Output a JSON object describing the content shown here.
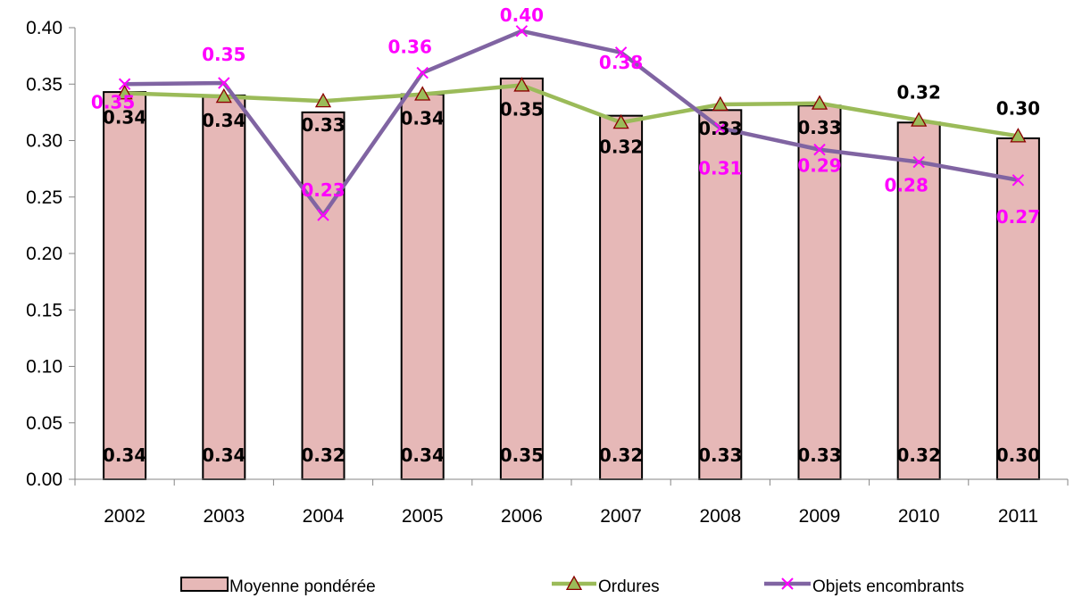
{
  "chart_data": {
    "type": "bar",
    "categories": [
      "2002",
      "2003",
      "2004",
      "2005",
      "2006",
      "2007",
      "2008",
      "2009",
      "2010",
      "2011"
    ],
    "ylim": [
      0,
      0.4
    ],
    "y_ticks": [
      "0.00",
      "0.05",
      "0.10",
      "0.15",
      "0.20",
      "0.25",
      "0.30",
      "0.35",
      "0.40"
    ],
    "grid": false,
    "legend_position": "bottom",
    "series": [
      {
        "name": "Moyenne pondérée",
        "type": "bar",
        "color": "#e6b8b7",
        "values": [
          0.343,
          0.34,
          0.325,
          0.341,
          0.355,
          0.322,
          0.327,
          0.331,
          0.316,
          0.302
        ],
        "labels": [
          "0.34",
          "0.34",
          "0.32",
          "0.34",
          "0.35",
          "0.32",
          "0.33",
          "0.33",
          "0.32",
          "0.30"
        ]
      },
      {
        "name": "Ordures",
        "type": "line",
        "marker": "triangle",
        "color": "#9bbb59",
        "values": [
          0.342,
          0.339,
          0.335,
          0.341,
          0.349,
          0.316,
          0.332,
          0.333,
          0.318,
          0.304
        ],
        "labels": [
          "0.34",
          "0.34",
          "0.33",
          "0.34",
          "0.35",
          "0.32",
          "0.33",
          "0.33",
          "0.32",
          "0.30"
        ]
      },
      {
        "name": "Objets encombrants",
        "type": "line",
        "marker": "x",
        "color": "#8064a2",
        "marker_color": "#ff00ff",
        "label_color": "#ff00ff",
        "values": [
          0.35,
          0.351,
          0.234,
          0.36,
          0.397,
          0.378,
          0.311,
          0.292,
          0.281,
          0.265
        ],
        "labels": [
          "0.35",
          "0.35",
          "0.23",
          "0.36",
          "0.40",
          "0.38",
          "0.31",
          "0.29",
          "0.28",
          "0.27"
        ]
      }
    ]
  }
}
